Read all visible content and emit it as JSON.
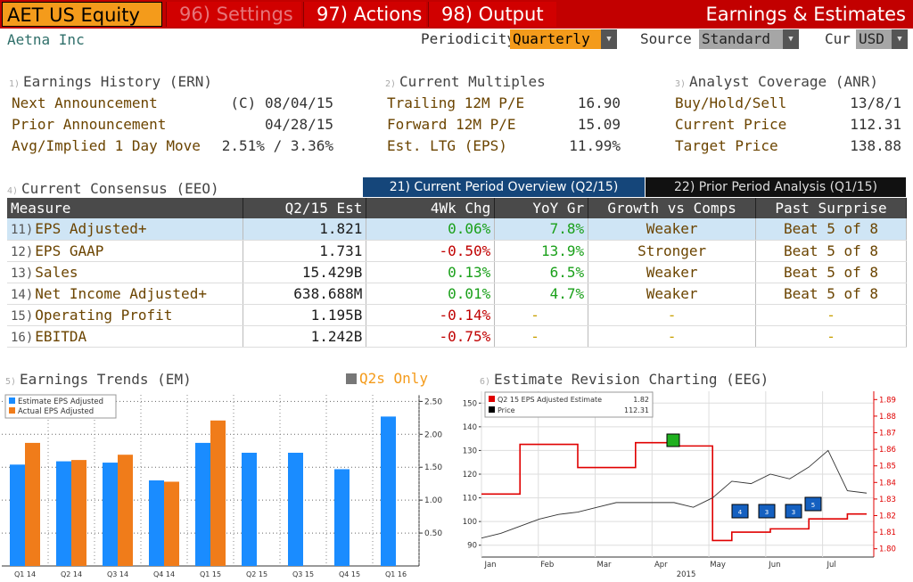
{
  "header": {
    "ticker": "AET US Equity",
    "menus": [
      {
        "num": "96)",
        "label": "Settings"
      },
      {
        "num": "97)",
        "label": "Actions"
      },
      {
        "num": "98)",
        "label": "Output"
      }
    ],
    "title": "Earnings & Estimates"
  },
  "company": "Aetna Inc",
  "controls": {
    "periodicity_label": "Periodicity",
    "periodicity": "Quarterly",
    "source_label": "Source",
    "source": "Standard",
    "cur_label": "Cur",
    "cur": "USD"
  },
  "earnings_history": {
    "num": "1)",
    "title": "Earnings History (ERN)",
    "rows": [
      {
        "label": "Next Announcement",
        "value": "(C)  08/04/15"
      },
      {
        "label": "Prior Announcement",
        "value": "04/28/15"
      },
      {
        "label": "Avg/Implied 1 Day Move",
        "value": "2.51% / 3.36%"
      }
    ]
  },
  "current_multiples": {
    "num": "2)",
    "title": "Current Multiples",
    "rows": [
      {
        "label": "Trailing 12M P/E",
        "value": "16.90"
      },
      {
        "label": "Forward 12M P/E",
        "value": "15.09"
      },
      {
        "label": "Est. LTG (EPS)",
        "value": "11.99%"
      }
    ]
  },
  "analyst_coverage": {
    "num": "3)",
    "title": "Analyst Coverage (ANR)",
    "rows": [
      {
        "label": "Buy/Hold/Sell",
        "value": "13/8/1"
      },
      {
        "label": "Current Price",
        "value": "112.31"
      },
      {
        "label": "Target Price",
        "value": "138.88"
      }
    ]
  },
  "consensus": {
    "num": "4)",
    "title": "Current Consensus (EEO)",
    "tab_current": "21) Current Period Overview (Q2/15)",
    "tab_prior": "22) Prior Period Analysis (Q1/15)",
    "columns": [
      "Measure",
      "Q2/15 Est",
      "4Wk Chg",
      "YoY Gr",
      "Growth vs Comps",
      "Past Surprise"
    ],
    "rows": [
      {
        "n": "11)",
        "measure": "EPS Adjusted+",
        "est": "1.821",
        "chg": "0.06%",
        "yoy": "7.8%",
        "comps": "Weaker",
        "surprise": "Beat 5 of 8"
      },
      {
        "n": "12)",
        "measure": "EPS GAAP",
        "est": "1.731",
        "chg": "-0.50%",
        "yoy": "13.9%",
        "comps": "Stronger",
        "surprise": "Beat 5 of 8"
      },
      {
        "n": "13)",
        "measure": "Sales",
        "est": "15.429B",
        "chg": "0.13%",
        "yoy": "6.5%",
        "comps": "Weaker",
        "surprise": "Beat 5 of 8"
      },
      {
        "n": "14)",
        "measure": "Net Income Adjusted+",
        "est": "638.688M",
        "chg": "0.01%",
        "yoy": "4.7%",
        "comps": "Weaker",
        "surprise": "Beat 5 of 8"
      },
      {
        "n": "15)",
        "measure": "Operating Profit",
        "est": "1.195B",
        "chg": "-0.14%",
        "yoy": "-",
        "comps": "-",
        "surprise": "-"
      },
      {
        "n": "16)",
        "measure": "EBITDA",
        "est": "1.242B",
        "chg": "-0.75%",
        "yoy": "-",
        "comps": "-",
        "surprise": "-"
      }
    ]
  },
  "earnings_trends": {
    "num": "5)",
    "title": "Earnings Trends (EM)",
    "q2_only": "Q2s Only"
  },
  "revision": {
    "num": "6)",
    "title": "Estimate Revision Charting (EEG)"
  },
  "colors": {
    "blue": "#1a8cff",
    "orange": "#f07c1a",
    "red": "#e00000",
    "bg": "#ffffff"
  },
  "chart_data": [
    {
      "type": "bar",
      "title": "Earnings Trends (EM)",
      "categories": [
        "Q1 14",
        "Q2 14",
        "Q3 14",
        "Q4 14",
        "Q1 15",
        "Q2 15",
        "Q3 15",
        "Q4 15",
        "Q1 16"
      ],
      "series": [
        {
          "name": "Estimate EPS Adjusted",
          "values": [
            1.54,
            1.59,
            1.57,
            1.3,
            1.87,
            1.72,
            1.72,
            1.47,
            2.27
          ]
        },
        {
          "name": "Actual EPS Adjusted",
          "values": [
            1.87,
            1.61,
            1.69,
            1.28,
            2.21,
            null,
            null,
            null,
            null
          ]
        }
      ],
      "yticks": [
        "0.50",
        "1.00",
        "1.50",
        "2.00",
        "2.50"
      ],
      "ylim": [
        0,
        2.6
      ],
      "legend": "top-left"
    },
    {
      "type": "line",
      "title": "Estimate Revision Charting (EEG)",
      "x_labels": [
        "Jan",
        "Feb",
        "Mar",
        "Apr",
        "May",
        "Jun",
        "Jul"
      ],
      "x_year": "2015",
      "left_ticks": [
        "90",
        "100",
        "110",
        "120",
        "130",
        "140",
        "150"
      ],
      "right_ticks": [
        "1.80",
        "1.81",
        "1.82",
        "1.83",
        "1.84",
        "1.85",
        "1.86",
        "1.87",
        "1.88",
        "1.89"
      ],
      "series": [
        {
          "name": "Q2 15 EPS Adjusted Estimate",
          "last": "1.82",
          "axis": "right",
          "values": [
            1.833,
            1.833,
            1.863,
            1.863,
            1.863,
            1.849,
            1.849,
            1.849,
            1.864,
            1.864,
            1.862,
            1.862,
            1.805,
            1.81,
            1.81,
            1.812,
            1.812,
            1.818,
            1.818,
            1.821,
            1.821
          ]
        },
        {
          "name": "Price",
          "last": "112.31",
          "axis": "left",
          "values": [
            93,
            95,
            98,
            101,
            103,
            104,
            106,
            108,
            108,
            108,
            108,
            106,
            110,
            117,
            116,
            120,
            118,
            123,
            130,
            113,
            112
          ]
        }
      ],
      "events": [
        "4",
        "3",
        "3",
        "5"
      ]
    }
  ]
}
